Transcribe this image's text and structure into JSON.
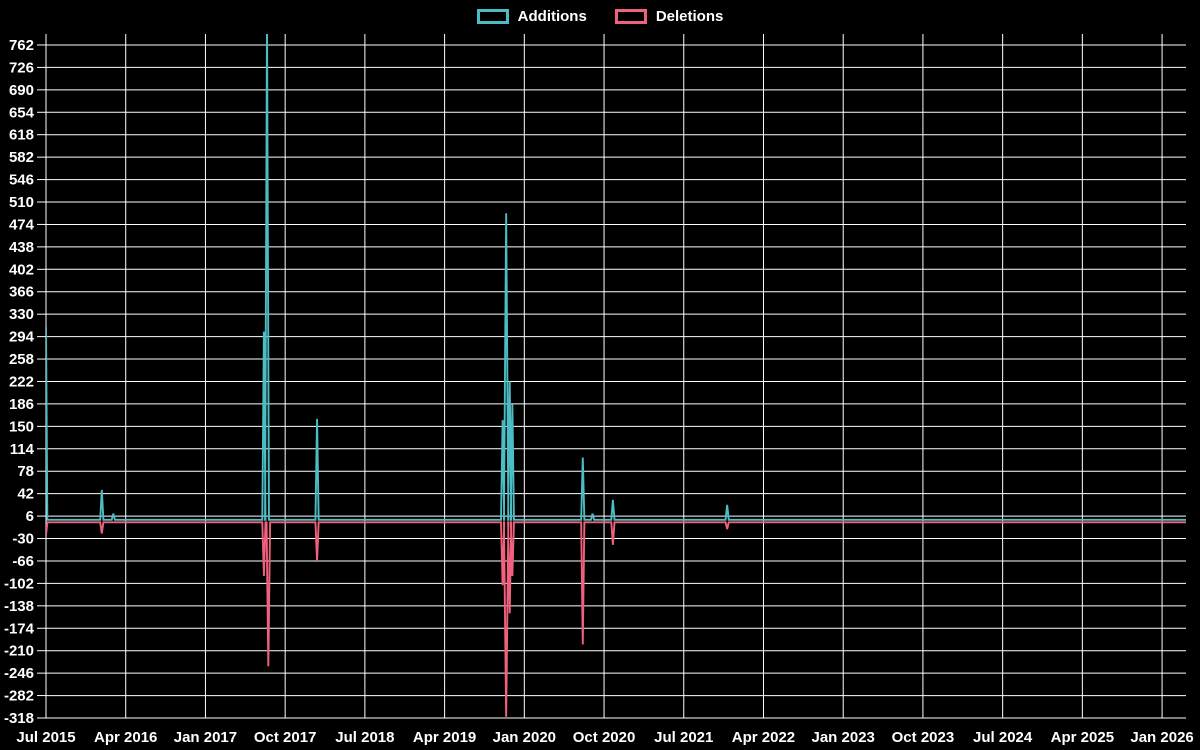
{
  "page": {
    "background": "#000000",
    "text_color": "#ffffff",
    "grid_color": "#ffffff"
  },
  "legend": {
    "position": "top-center",
    "items": [
      {
        "label": "Additions",
        "color": "#4cbdc4"
      },
      {
        "label": "Deletions",
        "color": "#ef617d"
      }
    ]
  },
  "chart_data": {
    "type": "line",
    "title": "",
    "grid": true,
    "background": "#000000",
    "grid_color": "#ffffff",
    "legend_position": "top-center",
    "x_axis": {
      "unit": "months since Jul 2015",
      "label_interval_months": 9,
      "domain_months": [
        0,
        128.7
      ],
      "labels": [
        "Jul 2015",
        "Apr 2016",
        "Jan 2017",
        "Oct 2017",
        "Jul 2018",
        "Apr 2019",
        "Jan 2020",
        "Oct 2020",
        "Jul 2021",
        "Apr 2022",
        "Jan 2023",
        "Oct 2023",
        "Jul 2024",
        "Apr 2025",
        "Jan 2026"
      ]
    },
    "y_axis": {
      "tick_min": -318,
      "tick_max": 762,
      "tick_step": 36,
      "domain": [
        -318,
        779.6
      ]
    },
    "series": [
      {
        "name": "Additions",
        "color": "#4cbdc4",
        "baseline": 0,
        "spikes": [
          {
            "date": "Jul 2015",
            "m": 0,
            "v": 310,
            "w": 0.15
          },
          {
            "date": "Feb 2016",
            "m": 6.3,
            "v": 48
          },
          {
            "date": "Mar 2016",
            "m": 7.6,
            "v": 10
          },
          {
            "date": "Aug 2017",
            "m": 24.6,
            "v": 302
          },
          {
            "date": "Sep 2017",
            "m": 24.95,
            "v": 800,
            "w": 0.22,
            "clipped": true
          },
          {
            "date": "Feb 2018",
            "m": 30.6,
            "v": 162
          },
          {
            "date": "Nov 2019",
            "m": 51.55,
            "v": 160
          },
          {
            "date": "Dec 2019",
            "m": 51.95,
            "v": 492,
            "w": 0.25
          },
          {
            "date": "Dec 2019",
            "m": 52.35,
            "v": 222
          },
          {
            "date": "Jan 2020",
            "m": 52.65,
            "v": 185
          },
          {
            "date": "Aug 2020",
            "m": 60.6,
            "v": 100
          },
          {
            "date": "Sep 2020",
            "m": 61.7,
            "v": 10
          },
          {
            "date": "Nov 2020",
            "m": 64,
            "v": 32
          },
          {
            "date": "Nov 2021",
            "m": 76.9,
            "v": 24
          }
        ]
      },
      {
        "name": "Deletions",
        "color": "#ef617d",
        "baseline": -4,
        "spikes": [
          {
            "date": "Jul 2015",
            "m": 0,
            "v": -25,
            "w": 0.15
          },
          {
            "date": "Feb 2016",
            "m": 6.3,
            "v": -22
          },
          {
            "date": "Aug 2017",
            "m": 24.6,
            "v": -90
          },
          {
            "date": "Sep 2017",
            "m": 25.1,
            "v": -235,
            "w": 0.2
          },
          {
            "date": "Feb 2018",
            "m": 30.6,
            "v": -66
          },
          {
            "date": "Nov 2019",
            "m": 51.55,
            "v": -105
          },
          {
            "date": "Dec 2019",
            "m": 51.95,
            "v": -316,
            "w": 0.25
          },
          {
            "date": "Dec 2019",
            "m": 52.35,
            "v": -150
          },
          {
            "date": "Jan 2020",
            "m": 52.65,
            "v": -90
          },
          {
            "date": "Aug 2020",
            "m": 60.6,
            "v": -200
          },
          {
            "date": "Nov 2020",
            "m": 64,
            "v": -40
          },
          {
            "date": "Nov 2021",
            "m": 76.9,
            "v": -15
          }
        ]
      }
    ]
  }
}
